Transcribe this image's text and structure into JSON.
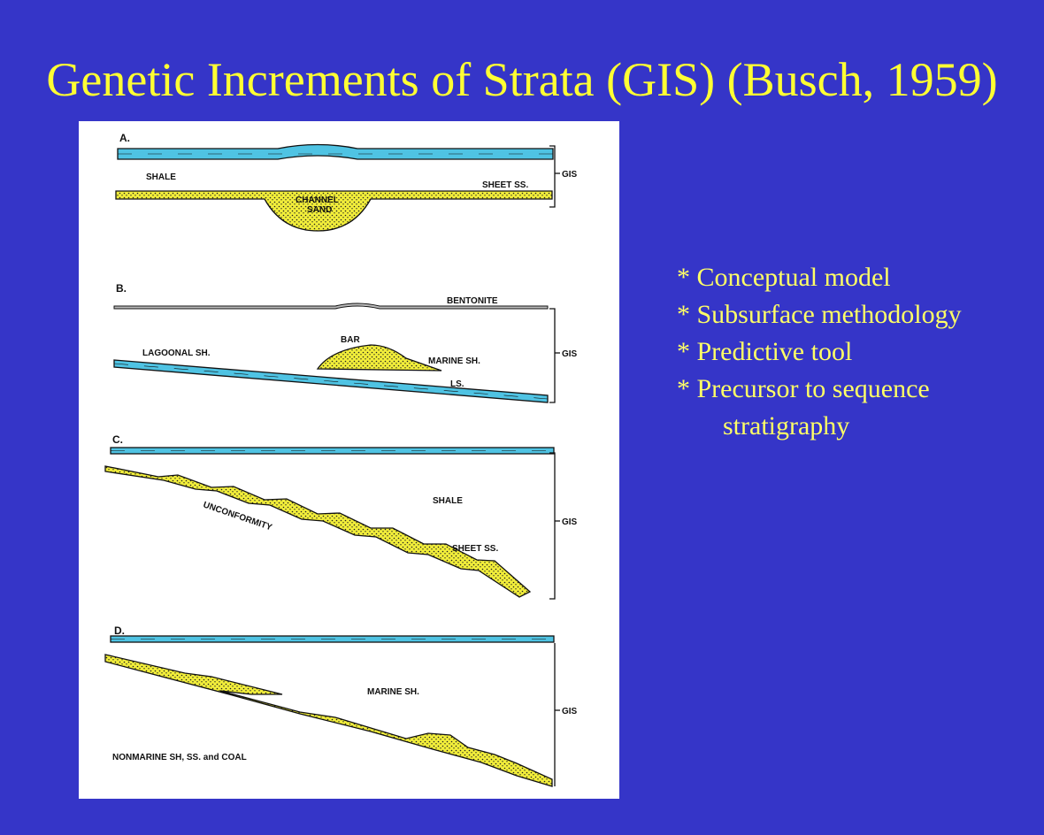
{
  "slide": {
    "title": "Genetic Increments of Strata (GIS) (Busch, 1959)"
  },
  "bullets": [
    "* Conceptual model",
    "* Subsurface methodology",
    "* Predictive tool",
    "* Precursor to sequence",
    "stratigraphy"
  ],
  "figure": {
    "colors": {
      "limestone": "#4fc3e3",
      "sand": "#f2ee3a",
      "ink": "#111111",
      "paper": "#ffffff"
    },
    "gis_label": "GIS",
    "panel_a": {
      "letter": "A.",
      "shale": "SHALE",
      "sheet_ss": "SHEET SS.",
      "channel_1": "CHANNEL",
      "channel_2": "SAND"
    },
    "panel_b": {
      "letter": "B.",
      "bentonite": "BENTONITE",
      "lagoonal": "LAGOONAL SH.",
      "bar": "BAR",
      "marine": "MARINE SH.",
      "ls": "LS."
    },
    "panel_c": {
      "letter": "C.",
      "shale": "SHALE",
      "unconformity": "UNCONFORMITY",
      "sheet_ss": "SHEET SS."
    },
    "panel_d": {
      "letter": "D.",
      "marine": "MARINE SH.",
      "nonmarine": "NONMARINE SH, SS. and COAL"
    }
  }
}
